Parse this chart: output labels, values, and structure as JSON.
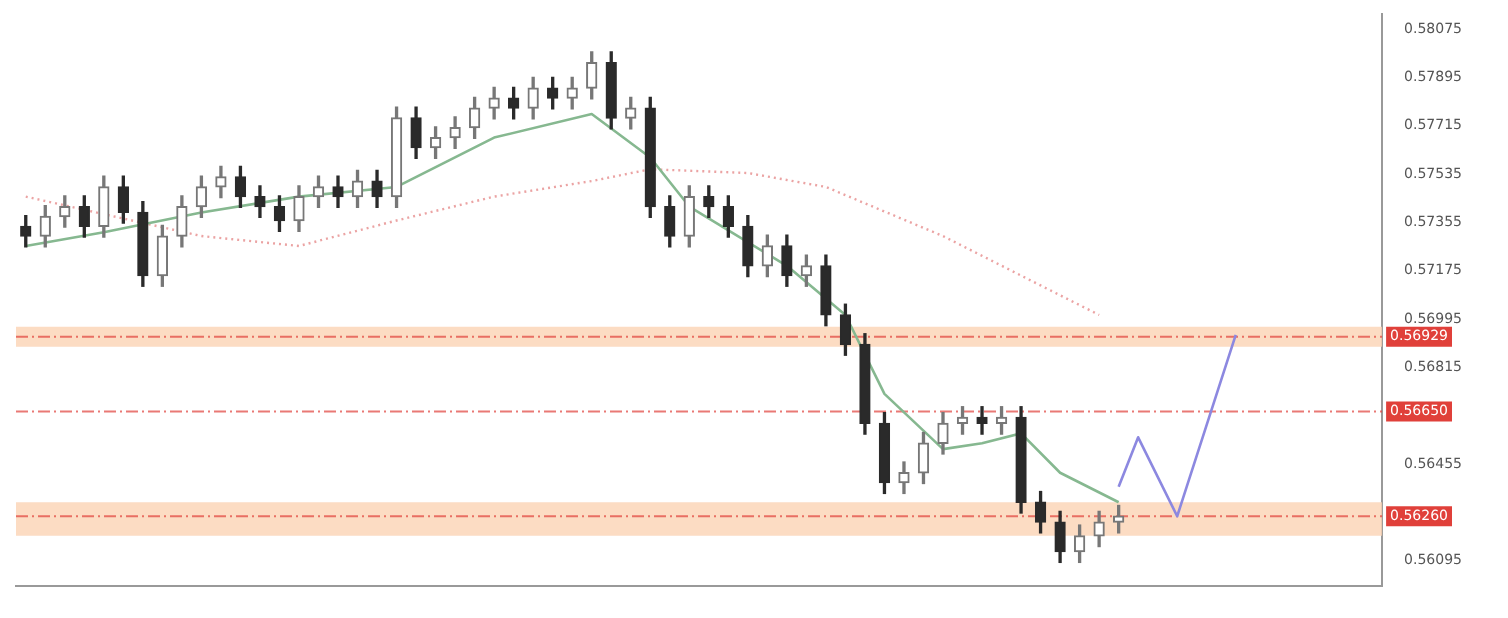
{
  "chart_data": {
    "type": "candlestick",
    "colors": [
      "#2a2a2a",
      "#777777",
      "#777777",
      "#2a2a2a",
      "#777777",
      "#2a2a2a",
      "#2a2a2a",
      "#777777",
      "#777777",
      "#777777",
      "#777777",
      "#2a2a2a",
      "#2a2a2a",
      "#2a2a2a",
      "#777777",
      "#777777",
      "#2a2a2a",
      "#777777",
      "#2a2a2a",
      "#777777",
      "#2a2a2a",
      "#777777",
      "#777777",
      "#777777",
      "#777777",
      "#2a2a2a",
      "#777777",
      "#2a2a2a",
      "#777777",
      "#777777",
      "#2a2a2a",
      "#777777",
      "#2a2a2a",
      "#2a2a2a",
      "#777777",
      "#2a2a2a",
      "#2a2a2a",
      "#2a2a2a",
      "#777777",
      "#2a2a2a",
      "#777777",
      "#2a2a2a",
      "#2a2a2a",
      "#2a2a2a",
      "#2a2a2a",
      "#777777",
      "#777777",
      "#777777",
      "#777777",
      "#2a2a2a",
      "#777777",
      "#2a2a2a",
      "#2a2a2a",
      "#2a2a2a",
      "#777777",
      "#777777",
      "#777777",
      null,
      null,
      null,
      null,
      null,
      null,
      null,
      null,
      null,
      null,
      null,
      null,
      null
    ],
    "legend": false,
    "grid": false,
    "categories": [
      null,
      null,
      null,
      null,
      null,
      null,
      null,
      null,
      null,
      null,
      null,
      null,
      null,
      null,
      null,
      null,
      null,
      null,
      null,
      null,
      null,
      null,
      null,
      null,
      null,
      null,
      null,
      null,
      null,
      null,
      null,
      null,
      null,
      null,
      null,
      null,
      null,
      null,
      null,
      null,
      null,
      null,
      null,
      null,
      null,
      null,
      null,
      null,
      null,
      null,
      null,
      null,
      null,
      null,
      null,
      null,
      null,
      null,
      null,
      null,
      null,
      null,
      null,
      null,
      null,
      null,
      null,
      null,
      null,
      null
    ],
    "ohlc": [
      [
        0.5734,
        0.5738,
        0.57264,
        0.57304
      ],
      [
        0.57304,
        0.57417,
        0.57264,
        0.57377
      ],
      [
        0.57377,
        0.57454,
        0.57337,
        0.57414
      ],
      [
        0.57414,
        0.57454,
        0.573,
        0.5734
      ],
      [
        0.5734,
        0.57527,
        0.573,
        0.57487
      ],
      [
        0.57487,
        0.57527,
        0.57352,
        0.57392
      ],
      [
        0.57392,
        0.57432,
        0.57117,
        0.57157
      ],
      [
        0.57157,
        0.57344,
        0.57117,
        0.57304
      ],
      [
        0.57304,
        0.57454,
        0.57264,
        0.57414
      ],
      [
        0.57414,
        0.57527,
        0.57374,
        0.57487
      ],
      [
        0.57487,
        0.57564,
        0.57447,
        0.57524
      ],
      [
        0.57524,
        0.57564,
        0.57411,
        0.57451
      ],
      [
        0.57451,
        0.57491,
        0.57374,
        0.57414
      ],
      [
        0.57414,
        0.57454,
        0.57322,
        0.57362
      ],
      [
        0.57362,
        0.57491,
        0.57322,
        0.57451
      ],
      [
        0.57451,
        0.57527,
        0.57411,
        0.57487
      ],
      [
        0.57487,
        0.57527,
        0.57411,
        0.57451
      ],
      [
        0.57451,
        0.57549,
        0.57411,
        0.57509
      ],
      [
        0.57509,
        0.57549,
        0.57411,
        0.57451
      ],
      [
        0.57451,
        0.57784,
        0.57411,
        0.57744
      ],
      [
        0.57744,
        0.57784,
        0.57594,
        0.57634
      ],
      [
        0.57634,
        0.57711,
        0.57594,
        0.57671
      ],
      [
        0.57671,
        0.57748,
        0.57631,
        0.57708
      ],
      [
        0.57708,
        0.57821,
        0.57668,
        0.57781
      ],
      [
        0.57781,
        0.57858,
        0.57741,
        0.57818
      ],
      [
        0.57818,
        0.57858,
        0.57741,
        0.57781
      ],
      [
        0.57781,
        0.57895,
        0.57741,
        0.57855
      ],
      [
        0.57855,
        0.57895,
        0.57778,
        0.57818
      ],
      [
        0.57818,
        0.57895,
        0.57778,
        0.57855
      ],
      [
        0.57855,
        0.5799,
        0.57815,
        0.5795
      ],
      [
        0.5795,
        0.5799,
        0.57704,
        0.57744
      ],
      [
        0.57744,
        0.57821,
        0.57704,
        0.57781
      ],
      [
        0.57781,
        0.57821,
        0.57374,
        0.57414
      ],
      [
        0.57414,
        0.57454,
        0.57264,
        0.57304
      ],
      [
        0.57304,
        0.57491,
        0.57264,
        0.57451
      ],
      [
        0.57451,
        0.57491,
        0.57374,
        0.57414
      ],
      [
        0.57414,
        0.57454,
        0.573,
        0.5734
      ],
      [
        0.5734,
        0.5738,
        0.57153,
        0.57193
      ],
      [
        0.57193,
        0.57307,
        0.57153,
        0.57267
      ],
      [
        0.57267,
        0.57307,
        0.57117,
        0.57157
      ],
      [
        0.57157,
        0.57233,
        0.57117,
        0.57193
      ],
      [
        0.57193,
        0.57233,
        0.5697,
        0.5701
      ],
      [
        0.5701,
        0.5705,
        0.5686,
        0.569
      ],
      [
        0.569,
        0.5694,
        0.56566,
        0.56606
      ],
      [
        0.56606,
        0.56646,
        0.56345,
        0.56385
      ],
      [
        0.56385,
        0.56462,
        0.56345,
        0.56422
      ],
      [
        0.56422,
        0.56572,
        0.56382,
        0.56532
      ],
      [
        0.56532,
        0.56646,
        0.56492,
        0.56606
      ],
      [
        0.56606,
        0.56668,
        0.56566,
        0.56628
      ],
      [
        0.56628,
        0.56668,
        0.56566,
        0.56606
      ],
      [
        0.56606,
        0.56668,
        0.56566,
        0.56628
      ],
      [
        0.56628,
        0.56668,
        0.56272,
        0.56312
      ],
      [
        0.56312,
        0.56352,
        0.56198,
        0.56238
      ],
      [
        0.56238,
        0.56278,
        0.56088,
        0.56128
      ],
      [
        0.56128,
        0.56227,
        0.56088,
        0.56187
      ],
      [
        0.56187,
        0.56278,
        0.56147,
        0.56238
      ],
      [
        0.56238,
        0.563,
        0.56198,
        0.5626
      ],
      null,
      null,
      null,
      null,
      null,
      null,
      null,
      null,
      null,
      null,
      null,
      null,
      null
    ],
    "series": [
      {
        "type": "line",
        "color": "#86b890",
        "line_style": "solid",
        "values": [
          0.57267,
          null,
          null,
          null,
          0.57318,
          null,
          null,
          null,
          null,
          0.57392,
          null,
          null,
          null,
          null,
          0.57451,
          null,
          null,
          null,
          null,
          0.57487,
          null,
          null,
          null,
          null,
          0.57671,
          null,
          null,
          null,
          null,
          0.57759,
          null,
          null,
          0.57597,
          null,
          0.57414,
          null,
          null,
          null,
          null,
          0.57193,
          null,
          null,
          0.5701,
          null,
          0.56716,
          null,
          null,
          0.5651,
          null,
          0.56532,
          null,
          0.56569,
          null,
          0.56422,
          null,
          null,
          0.56312,
          null,
          null,
          null,
          null,
          null,
          null,
          null,
          null,
          null,
          null,
          null,
          null,
          null
        ]
      },
      {
        "type": "line",
        "color": "#eba3a3",
        "line_style": "dotted",
        "values": [
          0.57451,
          null,
          null,
          null,
          null,
          null,
          null,
          null,
          null,
          0.57304,
          null,
          null,
          null,
          null,
          0.57267,
          null,
          null,
          null,
          null,
          0.57362,
          null,
          null,
          null,
          null,
          0.57451,
          null,
          null,
          null,
          null,
          0.57509,
          null,
          null,
          0.57553,
          null,
          null,
          null,
          null,
          0.57539,
          null,
          null,
          null,
          0.57487,
          null,
          null,
          null,
          null,
          null,
          0.57304,
          null,
          null,
          null,
          null,
          0.5712,
          null,
          null,
          0.5701,
          null,
          null,
          null,
          null,
          null,
          null,
          null,
          null,
          null,
          null,
          null,
          null,
          null,
          null
        ]
      },
      {
        "type": "line",
        "color": "#8c88e0",
        "line_style": "solid",
        "values": [
          null,
          null,
          null,
          null,
          null,
          null,
          null,
          null,
          null,
          null,
          null,
          null,
          null,
          null,
          null,
          null,
          null,
          null,
          null,
          null,
          null,
          null,
          null,
          null,
          null,
          null,
          null,
          null,
          null,
          null,
          null,
          null,
          null,
          null,
          null,
          null,
          null,
          null,
          null,
          null,
          null,
          null,
          null,
          null,
          null,
          null,
          null,
          null,
          null,
          null,
          null,
          null,
          null,
          null,
          null,
          null,
          0.5637,
          0.56554,
          null,
          0.5626,
          null,
          null,
          0.56936,
          null,
          null,
          null,
          null,
          null,
          null,
          null
        ]
      }
    ],
    "ylim": [
      0.56,
      0.5813
    ],
    "yticks": [
      0.58075,
      0.57895,
      0.57715,
      0.57535,
      0.57355,
      0.57175,
      0.56995,
      0.56815,
      0.56455,
      0.56095
    ],
    "ref_lines": [
      {
        "axis": "y",
        "value": 0.56929,
        "label": "0.56929",
        "color": "#e0403a",
        "line_style": "dashed"
      },
      {
        "axis": "y",
        "value": 0.5665,
        "label": "0.56650",
        "color": "#e0403a",
        "line_style": "dashed"
      },
      {
        "axis": "y",
        "value": 0.5626,
        "label": "0.56260",
        "color": "#e0403a",
        "line_style": "dashed"
      }
    ],
    "bands": [
      {
        "axis": "y",
        "from": 0.56892,
        "to": 0.56966,
        "color": "#fbd3b4"
      },
      {
        "axis": "y",
        "from": 0.56187,
        "to": 0.56312,
        "color": "#fbd3b4"
      }
    ]
  }
}
